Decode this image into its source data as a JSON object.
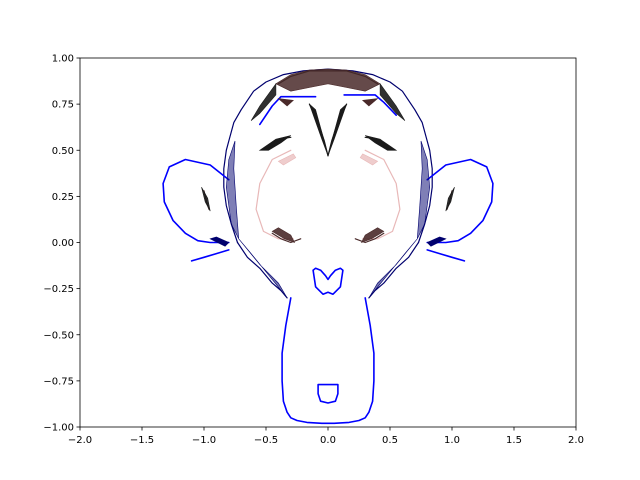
{
  "chart_data": {
    "type": "line",
    "title": "",
    "xlabel": "",
    "ylabel": "",
    "xlim": [
      -2.0,
      2.0
    ],
    "ylim": [
      -1.0,
      1.0
    ],
    "grid": false,
    "xticks": [
      -2.0,
      -1.5,
      -1.0,
      -0.5,
      0.0,
      0.5,
      1.0,
      1.5,
      2.0
    ],
    "xtick_labels": [
      "−2.0",
      "−1.5",
      "−1.0",
      "−0.5",
      "0.0",
      "0.5",
      "1.0",
      "1.5",
      "2.0"
    ],
    "yticks": [
      1.0,
      0.75,
      0.5,
      0.25,
      0.0,
      -0.25,
      -0.5,
      -0.75,
      -1.0
    ],
    "ytick_labels": [
      "1.00",
      "0.75",
      "0.50",
      "0.25",
      "0.00",
      "−0.25",
      "−0.50",
      "−0.75",
      "−1.00"
    ],
    "colors": {
      "blue": "#0000ff",
      "navy": "#00006e",
      "dark": "#1a1a1a",
      "brown": "#4a2a2a",
      "pink": "#e8b8b8",
      "black": "#000000"
    },
    "series": [
      {
        "color": "#0000ff",
        "x": [
          -0.3,
          -0.34,
          -0.37,
          -0.37,
          -0.36,
          -0.33,
          -0.3,
          -0.25,
          -0.17,
          -0.05,
          0.05,
          0.17,
          0.25,
          0.3,
          0.33,
          0.36,
          0.37,
          0.37,
          0.34,
          0.3
        ],
        "y": [
          -0.3,
          -0.45,
          -0.6,
          -0.75,
          -0.86,
          -0.92,
          -0.95,
          -0.965,
          -0.975,
          -0.98,
          -0.98,
          -0.975,
          -0.965,
          -0.95,
          -0.92,
          -0.86,
          -0.75,
          -0.6,
          -0.45,
          -0.3
        ]
      },
      {
        "color": "#0000ff",
        "x": [
          -0.55,
          -0.45,
          -0.38,
          -0.3,
          -0.1
        ],
        "y": [
          0.64,
          0.74,
          0.79,
          0.79,
          0.79
        ]
      },
      {
        "color": "#0000ff",
        "x": [
          0.55,
          0.45,
          0.38,
          0.3,
          0.13
        ],
        "y": [
          0.69,
          0.76,
          0.8,
          0.8,
          0.8
        ]
      },
      {
        "color": "#0000ff",
        "x": [
          -0.08,
          0.08,
          0.08,
          0.06,
          0.0,
          -0.06,
          -0.08,
          -0.08
        ],
        "y": [
          -0.77,
          -0.77,
          -0.82,
          -0.86,
          -0.87,
          -0.86,
          -0.82,
          -0.77
        ]
      },
      {
        "color": "#00006e",
        "x": [
          -0.73,
          -0.78,
          -0.82,
          -0.84,
          -0.84,
          -0.82,
          -0.8,
          -0.76,
          -0.7,
          -0.6,
          -0.5,
          -0.36,
          -0.2,
          0.0,
          0.2,
          0.36,
          0.5,
          0.6,
          0.7,
          0.76,
          0.8,
          0.82,
          0.84,
          0.84,
          0.82,
          0.78,
          0.73
        ],
        "y": [
          0.0,
          0.1,
          0.2,
          0.3,
          0.4,
          0.5,
          0.55,
          0.65,
          0.72,
          0.82,
          0.87,
          0.91,
          0.93,
          0.94,
          0.93,
          0.91,
          0.87,
          0.82,
          0.72,
          0.65,
          0.55,
          0.5,
          0.4,
          0.3,
          0.2,
          0.1,
          0.0
        ]
      },
      {
        "color": "#00006e",
        "x": [
          -0.73,
          -0.65,
          -0.55,
          -0.45,
          -0.38,
          -0.33
        ],
        "y": [
          0.0,
          -0.08,
          -0.14,
          -0.22,
          -0.26,
          -0.3
        ]
      },
      {
        "color": "#00006e",
        "x": [
          0.73,
          0.65,
          0.55,
          0.45,
          0.38,
          0.33
        ],
        "y": [
          0.0,
          -0.08,
          -0.14,
          -0.22,
          -0.26,
          -0.3
        ]
      },
      {
        "color": "#0000ff",
        "x": [
          -0.8,
          -0.95,
          -1.15,
          -1.28,
          -1.33,
          -1.32,
          -1.25,
          -1.15,
          -1.05,
          -0.95,
          -0.8
        ],
        "y": [
          0.34,
          0.42,
          0.45,
          0.41,
          0.32,
          0.22,
          0.12,
          0.05,
          0.01,
          0.0,
          0.0
        ]
      },
      {
        "color": "#0000ff",
        "x": [
          0.8,
          0.95,
          1.15,
          1.28,
          1.33,
          1.32,
          1.25,
          1.15,
          1.05,
          0.95,
          0.8
        ],
        "y": [
          0.34,
          0.42,
          0.45,
          0.41,
          0.32,
          0.22,
          0.12,
          0.05,
          0.01,
          0.0,
          0.0
        ]
      },
      {
        "color": "#0000ff",
        "x": [
          -0.8,
          -0.9,
          -1.0,
          -1.1
        ],
        "y": [
          -0.04,
          -0.06,
          -0.08,
          -0.1
        ]
      },
      {
        "color": "#0000ff",
        "x": [
          0.8,
          0.9,
          1.0,
          1.1
        ],
        "y": [
          -0.04,
          -0.06,
          -0.08,
          -0.1
        ]
      },
      {
        "color": "#0000ff",
        "x": [
          -0.12,
          -0.1,
          -0.06,
          -0.02,
          0.0,
          0.02,
          0.06,
          0.1,
          0.12,
          0.1,
          0.04,
          0.0,
          -0.04,
          -0.1,
          -0.12
        ],
        "y": [
          -0.15,
          -0.14,
          -0.15,
          -0.18,
          -0.2,
          -0.18,
          -0.15,
          -0.14,
          -0.15,
          -0.24,
          -0.28,
          -0.27,
          -0.28,
          -0.24,
          -0.15
        ]
      },
      {
        "color": "#1a1a1a",
        "x": [
          -0.4,
          -0.3,
          -0.15,
          0.0,
          0.15,
          0.3,
          0.4
        ],
        "y": [
          0.86,
          0.9,
          0.93,
          0.93,
          0.93,
          0.9,
          0.86
        ]
      },
      {
        "color": "#1a1a1a",
        "x": [
          -0.15,
          -0.08,
          -0.03,
          0.0
        ],
        "y": [
          0.75,
          0.65,
          0.55,
          0.47
        ]
      },
      {
        "color": "#1a1a1a",
        "x": [
          0.15,
          0.08,
          0.03,
          0.0
        ],
        "y": [
          0.75,
          0.65,
          0.55,
          0.47
        ]
      },
      {
        "color": "#1a1a1a",
        "x": [
          -0.5,
          -0.4,
          -0.3
        ],
        "y": [
          0.52,
          0.56,
          0.57
        ]
      },
      {
        "color": "#1a1a1a",
        "x": [
          0.5,
          0.4,
          0.3
        ],
        "y": [
          0.52,
          0.56,
          0.57
        ]
      },
      {
        "color": "#e8b8b8",
        "x": [
          -0.3,
          -0.45,
          -0.55,
          -0.58,
          -0.52,
          -0.4,
          -0.28
        ],
        "y": [
          0.5,
          0.45,
          0.32,
          0.18,
          0.06,
          0.02,
          0.02
        ]
      },
      {
        "color": "#e8b8b8",
        "x": [
          0.3,
          0.45,
          0.55,
          0.58,
          0.52,
          0.4,
          0.28
        ],
        "y": [
          0.5,
          0.45,
          0.32,
          0.18,
          0.06,
          0.02,
          0.02
        ]
      },
      {
        "color": "#4a2a2a",
        "x": [
          -0.45,
          -0.38,
          -0.3,
          -0.22
        ],
        "y": [
          0.05,
          0.02,
          0.0,
          0.02
        ]
      },
      {
        "color": "#4a2a2a",
        "x": [
          0.45,
          0.38,
          0.3,
          0.22
        ],
        "y": [
          0.05,
          0.02,
          0.0,
          0.02
        ]
      },
      {
        "color": "#4a2a2a",
        "x": [
          -1.0,
          -0.98,
          -0.96
        ],
        "y": [
          0.28,
          0.22,
          0.18
        ]
      },
      {
        "color": "#4a2a2a",
        "x": [
          1.0,
          0.98,
          0.96
        ],
        "y": [
          0.28,
          0.22,
          0.18
        ]
      }
    ]
  }
}
